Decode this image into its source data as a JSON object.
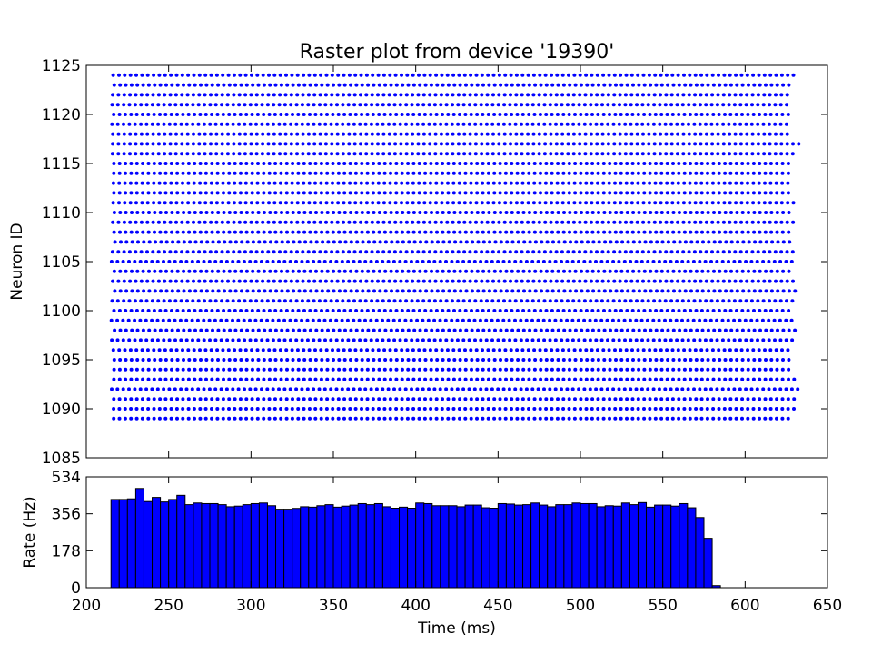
{
  "chart_data": [
    {
      "type": "scatter",
      "title": "Raster plot from device '19390'",
      "xlabel": "",
      "ylabel": "Neuron ID",
      "xlim": [
        200,
        650
      ],
      "ylim": [
        1085,
        1125
      ],
      "yticks": [
        1085,
        1090,
        1095,
        1100,
        1105,
        1110,
        1115,
        1120,
        1125
      ],
      "neuron_ids": [
        1089,
        1124
      ],
      "spike_time_range_ms": [
        215,
        630
      ],
      "spike_interval_ms": 3.5,
      "marker": "dot",
      "color": "#0000ff"
    },
    {
      "type": "bar",
      "xlabel": "Time (ms)",
      "ylabel": "Rate (Hz)",
      "xlim": [
        200,
        650
      ],
      "ylim": [
        0,
        534
      ],
      "xticks": [
        200,
        250,
        300,
        350,
        400,
        450,
        500,
        550,
        600,
        650
      ],
      "yticks": [
        0,
        178,
        356,
        534
      ],
      "bin_width_ms": 5,
      "bin_start_ms": 215,
      "values": [
        425,
        425,
        428,
        478,
        415,
        435,
        413,
        425,
        445,
        400,
        408,
        405,
        405,
        400,
        390,
        393,
        400,
        405,
        408,
        395,
        378,
        378,
        382,
        390,
        388,
        395,
        400,
        388,
        393,
        398,
        405,
        400,
        405,
        390,
        383,
        388,
        383,
        408,
        405,
        395,
        395,
        395,
        390,
        398,
        398,
        385,
        383,
        405,
        403,
        398,
        400,
        408,
        398,
        390,
        400,
        400,
        408,
        405,
        405,
        390,
        395,
        393,
        408,
        400,
        410,
        388,
        398,
        398,
        393,
        405,
        385,
        338,
        238,
        10
      ],
      "color": "#0000ff"
    }
  ]
}
